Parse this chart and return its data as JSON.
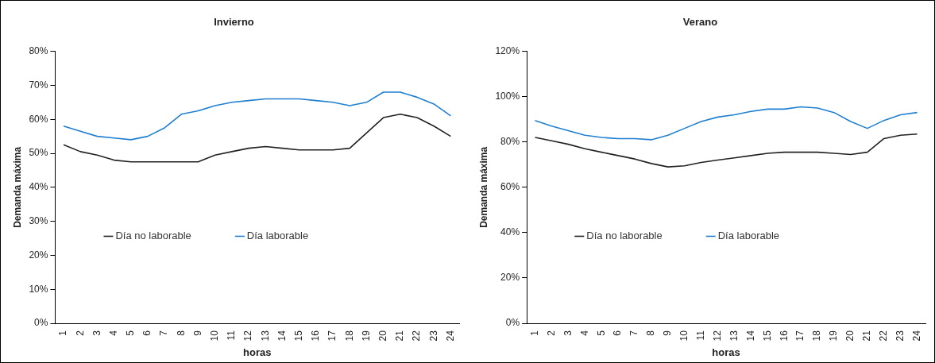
{
  "chart_data": [
    {
      "type": "line",
      "title": "Invierno",
      "xlabel": "horas",
      "ylabel": "Demanda máxima",
      "categories": [
        "1",
        "2",
        "3",
        "4",
        "5",
        "6",
        "7",
        "8",
        "9",
        "10",
        "11",
        "12",
        "13",
        "14",
        "15",
        "16",
        "17",
        "18",
        "19",
        "20",
        "21",
        "22",
        "23",
        "24"
      ],
      "series": [
        {
          "name": "Día no laborable",
          "color": "#222222",
          "values": [
            52.5,
            50.5,
            49.5,
            48,
            47.5,
            47.5,
            47.5,
            47.5,
            47.5,
            49.5,
            50.5,
            51.5,
            52,
            51.5,
            51,
            51,
            51,
            51.5,
            56,
            60.5,
            61.5,
            60.5,
            58,
            55
          ]
        },
        {
          "name": "Día laborable",
          "color": "#1f7fd0",
          "values": [
            58,
            56.5,
            55,
            54.5,
            54,
            55,
            57.5,
            61.5,
            62.5,
            64,
            65,
            65.5,
            66,
            66,
            66,
            65.5,
            65,
            64,
            65,
            68,
            68,
            66.5,
            64.5,
            61
          ]
        }
      ],
      "ylim": [
        0,
        80
      ],
      "yticks": [
        {
          "value": 0,
          "label": "0%"
        },
        {
          "value": 10,
          "label": "10%"
        },
        {
          "value": 20,
          "label": "20%"
        },
        {
          "value": 30,
          "label": "30%"
        },
        {
          "value": 40,
          "label": "40%"
        },
        {
          "value": 50,
          "label": "50%"
        },
        {
          "value": 60,
          "label": "60%"
        },
        {
          "value": 70,
          "label": "70%"
        },
        {
          "value": 80,
          "label": "80%"
        }
      ],
      "grid": false,
      "legend": "bottom",
      "marker": "none",
      "line_style": "solid"
    },
    {
      "type": "line",
      "title": "Verano",
      "xlabel": "horas",
      "ylabel": "Demanda máxima",
      "categories": [
        "1",
        "2",
        "3",
        "4",
        "5",
        "6",
        "7",
        "8",
        "9",
        "10",
        "11",
        "12",
        "13",
        "14",
        "15",
        "16",
        "17",
        "18",
        "19",
        "20",
        "21",
        "22",
        "23",
        "24"
      ],
      "series": [
        {
          "name": "Día no laborable",
          "color": "#222222",
          "values": [
            82,
            80.5,
            79,
            77,
            75.5,
            74,
            72.5,
            70.5,
            69,
            69.5,
            71,
            72,
            73,
            74,
            75,
            75.5,
            75.5,
            75.5,
            75,
            74.5,
            75.5,
            81.5,
            83,
            83.5
          ]
        },
        {
          "name": "Día laborable",
          "color": "#1f7fd0",
          "values": [
            89.5,
            87,
            85,
            83,
            82,
            81.5,
            81.5,
            81,
            83,
            86,
            89,
            91,
            92,
            93.5,
            94.5,
            94.5,
            95.5,
            95,
            93,
            89,
            86,
            89.5,
            92,
            93
          ]
        }
      ],
      "ylim": [
        0,
        120
      ],
      "yticks": [
        {
          "value": 0,
          "label": "0%"
        },
        {
          "value": 20,
          "label": "20%"
        },
        {
          "value": 40,
          "label": "40%"
        },
        {
          "value": 60,
          "label": "60%"
        },
        {
          "value": 80,
          "label": "80%"
        },
        {
          "value": 100,
          "label": "100%"
        },
        {
          "value": 120,
          "label": "120%"
        }
      ],
      "grid": false,
      "legend": "bottom",
      "marker": "none",
      "line_style": "solid"
    }
  ]
}
